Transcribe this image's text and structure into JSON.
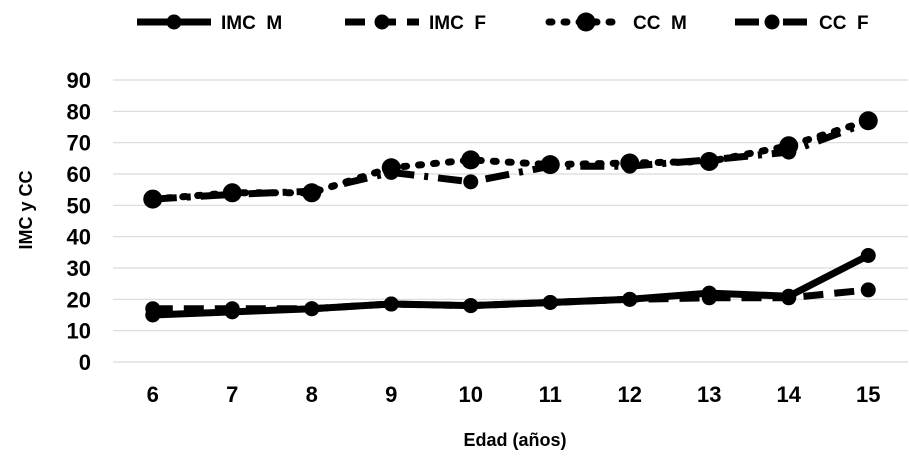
{
  "chart_data": {
    "type": "line",
    "title": "",
    "xlabel": "Edad (años)",
    "ylabel": "IMC y CC",
    "categories": [
      "6",
      "7",
      "8",
      "9",
      "10",
      "11",
      "12",
      "13",
      "14",
      "15"
    ],
    "ylim": [
      0,
      90
    ],
    "yticks": [
      "0",
      "10",
      "20",
      "30",
      "40",
      "50",
      "60",
      "70",
      "80",
      "90"
    ],
    "grid": true,
    "legend_position": "top",
    "series": [
      {
        "name": "IMC  M",
        "values": [
          15,
          16,
          17,
          18.5,
          18,
          19,
          20,
          22,
          21,
          34
        ],
        "style": "solid",
        "marker": "medium"
      },
      {
        "name": "IMC  F",
        "values": [
          17,
          17,
          17,
          18.5,
          18,
          19,
          20,
          20.5,
          20.5,
          23
        ],
        "style": "dashed",
        "marker": "medium"
      },
      {
        "name": "CC  M",
        "values": [
          52,
          54,
          54,
          62,
          64.5,
          63,
          63.5,
          64,
          69,
          77
        ],
        "style": "dotted",
        "marker": "large"
      },
      {
        "name": "CC  F",
        "values": [
          52,
          53.5,
          54.5,
          60.5,
          57.5,
          62.5,
          62.5,
          64.5,
          67,
          76.5
        ],
        "style": "dash-dot",
        "marker": "medium"
      }
    ],
    "colors": {
      "series": "#000000",
      "grid": "#d9d9d9"
    }
  }
}
